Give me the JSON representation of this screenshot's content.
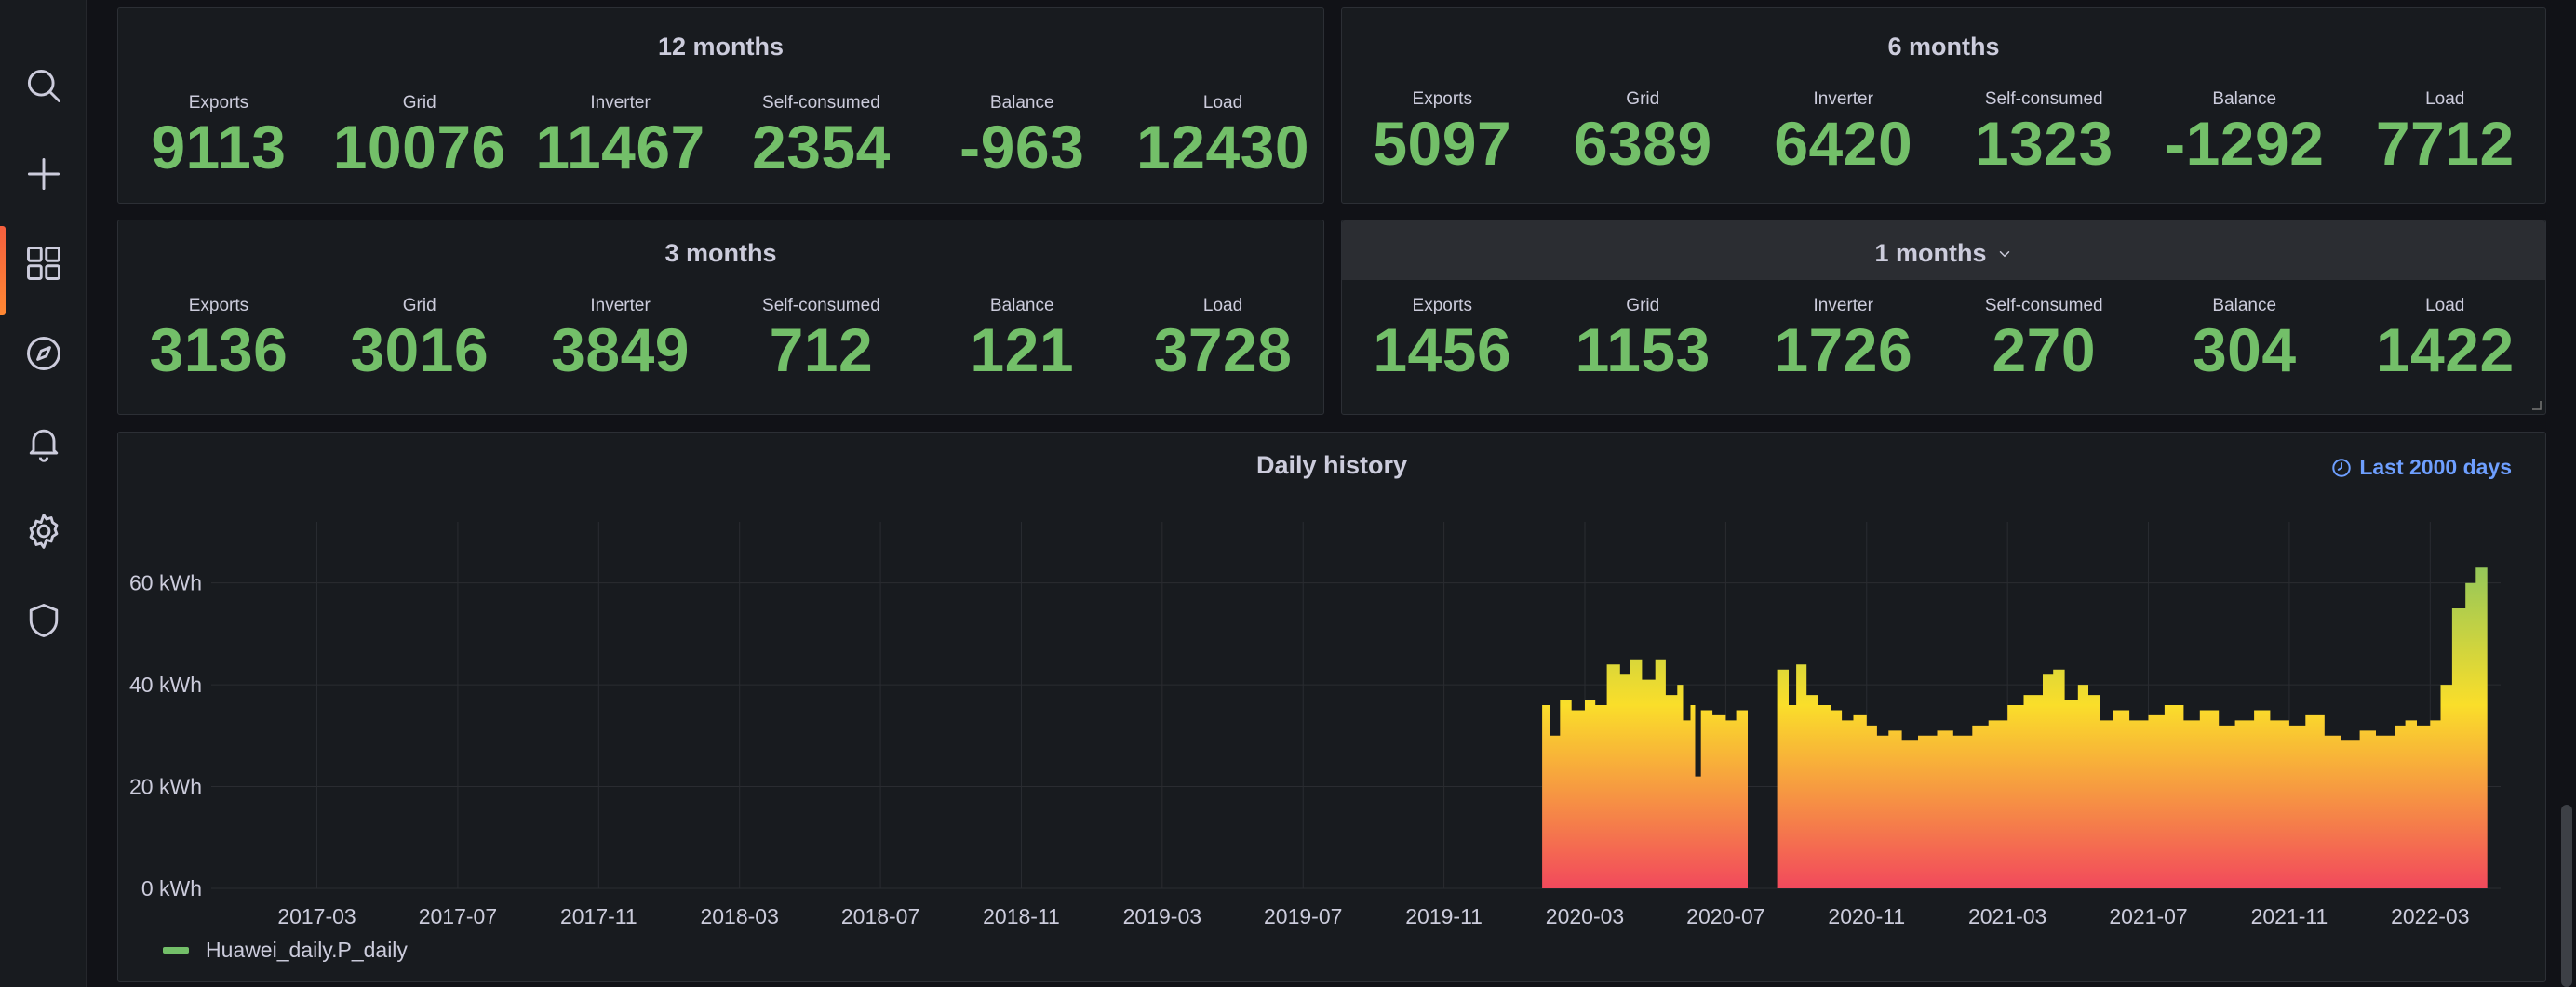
{
  "sidebar": {
    "items": [
      {
        "name": "search-icon"
      },
      {
        "name": "plus-icon"
      },
      {
        "name": "dashboards-icon"
      },
      {
        "name": "explore-icon"
      },
      {
        "name": "alerting-icon"
      },
      {
        "name": "settings-icon"
      },
      {
        "name": "shield-icon"
      }
    ],
    "active_index": 2,
    "accent": "#ff8833"
  },
  "panels": [
    {
      "title": "12 months",
      "stats": [
        {
          "label": "Exports",
          "value": "9113"
        },
        {
          "label": "Grid",
          "value": "10076"
        },
        {
          "label": "Inverter",
          "value": "11467"
        },
        {
          "label": "Self-consumed",
          "value": "2354"
        },
        {
          "label": "Balance",
          "value": "-963"
        },
        {
          "label": "Load",
          "value": "12430"
        }
      ]
    },
    {
      "title": "6 months",
      "stats": [
        {
          "label": "Exports",
          "value": "5097"
        },
        {
          "label": "Grid",
          "value": "6389"
        },
        {
          "label": "Inverter",
          "value": "6420"
        },
        {
          "label": "Self-consumed",
          "value": "1323"
        },
        {
          "label": "Balance",
          "value": "-1292"
        },
        {
          "label": "Load",
          "value": "7712"
        }
      ]
    },
    {
      "title": "3 months",
      "stats": [
        {
          "label": "Exports",
          "value": "3136"
        },
        {
          "label": "Grid",
          "value": "3016"
        },
        {
          "label": "Inverter",
          "value": "3849"
        },
        {
          "label": "Self-consumed",
          "value": "712"
        },
        {
          "label": "Balance",
          "value": "121"
        },
        {
          "label": "Load",
          "value": "3728"
        }
      ]
    },
    {
      "title": "1 months",
      "stats": [
        {
          "label": "Exports",
          "value": "1456"
        },
        {
          "label": "Grid",
          "value": "1153"
        },
        {
          "label": "Inverter",
          "value": "1726"
        },
        {
          "label": "Self-consumed",
          "value": "270"
        },
        {
          "label": "Balance",
          "value": "304"
        },
        {
          "label": "Load",
          "value": "1422"
        }
      ]
    }
  ],
  "history": {
    "title": "Daily history",
    "time_range": "Last 2000 days",
    "time_range_color": "#6e9fff"
  },
  "chart_data": {
    "type": "area",
    "title": "Daily history",
    "xlabel": "",
    "ylabel": "",
    "x_ticks": [
      "2017-03",
      "2017-07",
      "2017-11",
      "2018-03",
      "2018-07",
      "2018-11",
      "2019-03",
      "2019-07",
      "2019-11",
      "2020-03",
      "2020-07",
      "2020-11",
      "2021-03",
      "2021-07",
      "2021-11",
      "2022-03"
    ],
    "y_ticks": [
      "0 kWh",
      "20 kWh",
      "40 kWh",
      "60 kWh"
    ],
    "y_unit": "kWh",
    "ylim": [
      0,
      72
    ],
    "xlim": [
      "2016-12",
      "2022-05"
    ],
    "grid": true,
    "legend_position": "bottom-left",
    "gradient_colors": [
      "#f2495c",
      "#fade2a",
      "#73bf69"
    ],
    "series": [
      {
        "name": "Huawei_daily.P_daily",
        "color": "#73bf69",
        "segments": [
          {
            "x": [
              "2020-01-25",
              "2020-02-01",
              "2020-02-10",
              "2020-02-20",
              "2020-03-01",
              "2020-03-10",
              "2020-03-20",
              "2020-04-01",
              "2020-04-10",
              "2020-04-20",
              "2020-05-01",
              "2020-05-10",
              "2020-05-20",
              "2020-05-25",
              "2020-06-01",
              "2020-06-05",
              "2020-06-10",
              "2020-06-20",
              "2020-07-01",
              "2020-07-10",
              "2020-07-20"
            ],
            "y": [
              36,
              30,
              37,
              35,
              37,
              36,
              44,
              42,
              45,
              41,
              45,
              38,
              40,
              33,
              36,
              22,
              35,
              34,
              33,
              35,
              34
            ]
          },
          {
            "x": [
              "2020-08-15",
              "2020-08-25",
              "2020-09-01",
              "2020-09-10",
              "2020-09-20",
              "2020-10-01",
              "2020-10-10",
              "2020-10-20",
              "2020-11-01",
              "2020-11-10",
              "2020-11-20",
              "2020-12-01",
              "2020-12-15",
              "2021-01-01",
              "2021-01-15",
              "2021-02-01",
              "2021-02-15",
              "2021-03-01",
              "2021-03-15",
              "2021-04-01",
              "2021-04-10",
              "2021-04-20",
              "2021-05-01",
              "2021-05-10",
              "2021-05-20",
              "2021-06-01",
              "2021-06-15",
              "2021-07-01",
              "2021-07-15",
              "2021-08-01",
              "2021-08-15",
              "2021-09-01",
              "2021-09-15",
              "2021-10-01",
              "2021-10-15",
              "2021-11-01",
              "2021-11-15",
              "2021-12-01",
              "2021-12-15",
              "2022-01-01",
              "2022-01-15",
              "2022-02-01",
              "2022-02-10",
              "2022-02-20",
              "2022-03-01",
              "2022-03-10",
              "2022-03-20",
              "2022-04-01",
              "2022-04-10",
              "2022-04-20"
            ],
            "y": [
              43,
              36,
              44,
              38,
              36,
              35,
              33,
              34,
              32,
              30,
              31,
              29,
              30,
              31,
              30,
              32,
              33,
              36,
              38,
              42,
              43,
              37,
              40,
              38,
              33,
              35,
              33,
              34,
              36,
              33,
              35,
              32,
              33,
              35,
              33,
              32,
              34,
              30,
              29,
              31,
              30,
              32,
              33,
              32,
              33,
              40,
              55,
              60,
              63,
              62
            ]
          }
        ]
      }
    ]
  }
}
